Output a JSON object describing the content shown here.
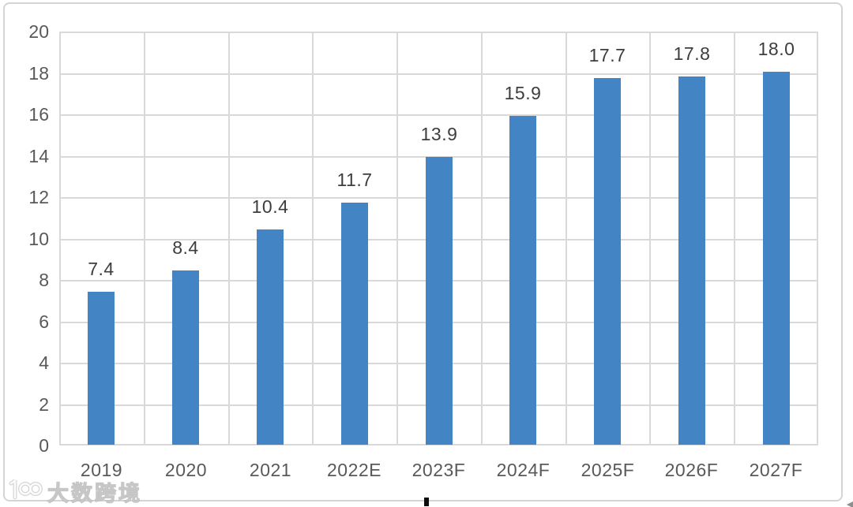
{
  "chart_data": {
    "type": "bar",
    "title": "",
    "categories": [
      "2019",
      "2020",
      "2021",
      "2022E",
      "2023F",
      "2024F",
      "2025F",
      "2026F",
      "2027F"
    ],
    "values": [
      7.4,
      8.4,
      10.4,
      11.7,
      13.9,
      15.9,
      17.7,
      17.8,
      18.0
    ],
    "value_labels": [
      "7.4",
      "8.4",
      "10.4",
      "11.7",
      "13.9",
      "15.9",
      "17.7",
      "17.8",
      "18.0"
    ],
    "xlabel": "",
    "ylabel": "",
    "ylim": [
      0,
      20
    ],
    "yticks": [
      0,
      2,
      4,
      6,
      8,
      10,
      12,
      14,
      16,
      18,
      20
    ],
    "grid": true,
    "legend_position": "none",
    "bar_color": "#4384c4",
    "gridline_color": "#d9d9d9",
    "axis_label_color": "#595959",
    "value_label_color": "#3d3d3d"
  },
  "watermark": {
    "logo": "100-logo",
    "text": "大数跨境"
  },
  "artifacts": {
    "corner_cursor_glyph": "◄"
  }
}
